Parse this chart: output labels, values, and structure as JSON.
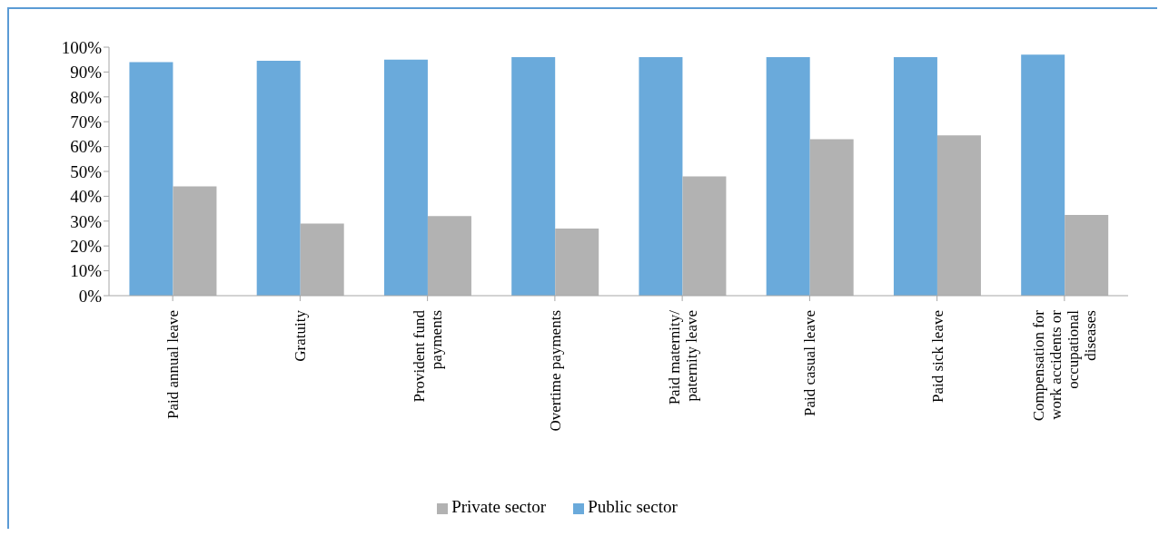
{
  "chart_data": {
    "type": "bar",
    "categories": [
      "Paid annual leave",
      "Gratuity",
      "Provident fund payments",
      "Overtime payments",
      "Paid maternity/ paternity leave",
      "Paid casual leave",
      "Paid sick leave",
      "Compensation for work accidents or occupational diseases"
    ],
    "series": [
      {
        "name": "Public sector",
        "color": "#6aaadb",
        "values": [
          94,
          94.5,
          95,
          96,
          96,
          96,
          96,
          97
        ]
      },
      {
        "name": "Private sector",
        "color": "#b2b2b2",
        "values": [
          44,
          29,
          32,
          27,
          48,
          63,
          64.5,
          32.5
        ]
      }
    ],
    "ylim": [
      0,
      100
    ],
    "yticks": [
      {
        "value": 0,
        "label": "0%"
      },
      {
        "value": 10,
        "label": "10%"
      },
      {
        "value": 20,
        "label": "20%"
      },
      {
        "value": 30,
        "label": "30%"
      },
      {
        "value": 40,
        "label": "40%"
      },
      {
        "value": 50,
        "label": "50%"
      },
      {
        "value": 60,
        "label": "60%"
      },
      {
        "value": 70,
        "label": "70%"
      },
      {
        "value": 80,
        "label": "80%"
      },
      {
        "value": 90,
        "label": "90%"
      },
      {
        "value": 100,
        "label": "100%"
      }
    ],
    "grid": false,
    "legend": "bottom"
  }
}
